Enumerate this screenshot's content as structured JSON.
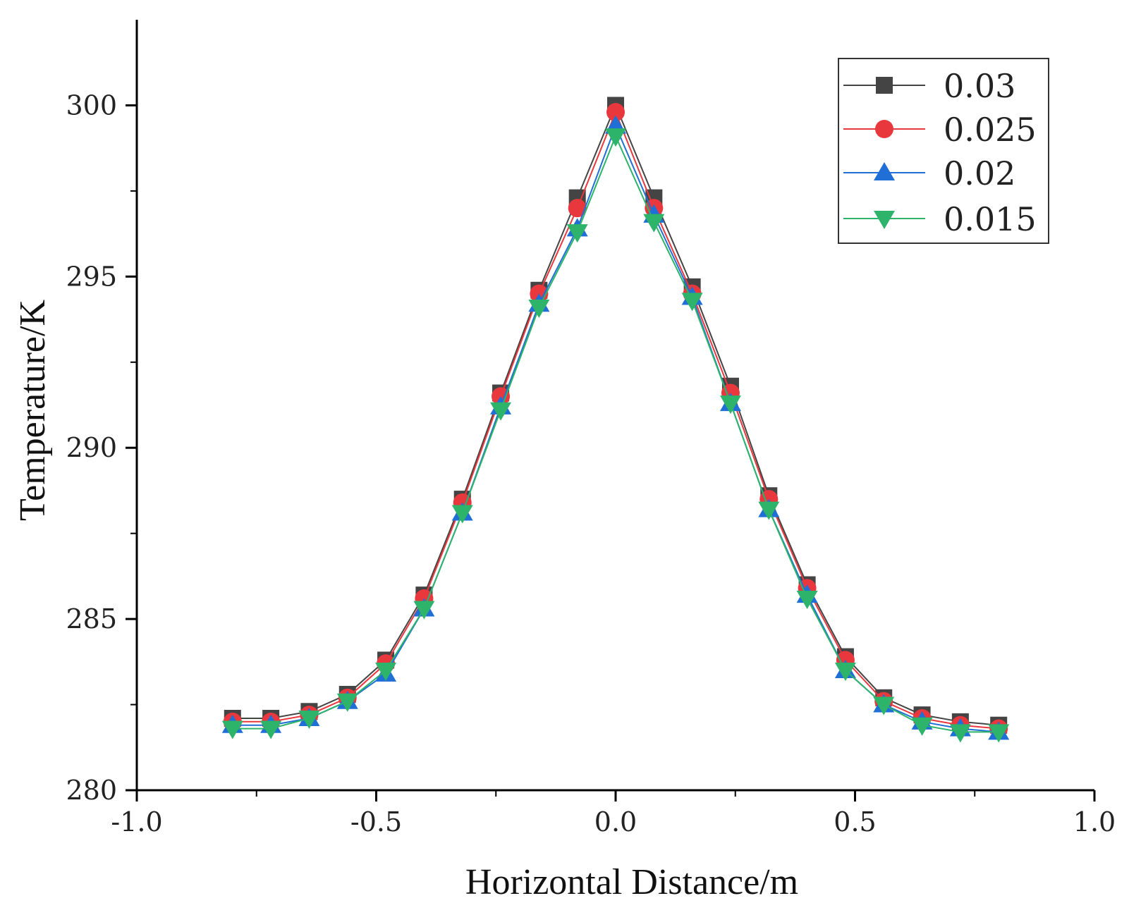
{
  "chart_data": {
    "type": "line",
    "title": "",
    "xlabel": "Horizontal Distance/m",
    "ylabel": "Temperature/K",
    "xlim": [
      -1.0,
      1.0
    ],
    "ylim": [
      280,
      302.5
    ],
    "x_ticks": [
      -1.0,
      -0.5,
      0.0,
      0.5,
      1.0
    ],
    "x_tick_labels": [
      "-1.0",
      "-0.5",
      "0.0",
      "0.5",
      "1.0"
    ],
    "x_minor_ticks": [
      -0.75,
      -0.25,
      0.25,
      0.75
    ],
    "y_ticks": [
      280,
      285,
      290,
      295,
      300
    ],
    "y_tick_labels": [
      "280",
      "285",
      "290",
      "295",
      "300"
    ],
    "y_minor_ticks": [
      282.5,
      287.5,
      292.5,
      297.5
    ],
    "grid": false,
    "legend_position": "top-right",
    "x": [
      -0.8,
      -0.72,
      -0.64,
      -0.56,
      -0.48,
      -0.4,
      -0.32,
      -0.24,
      -0.16,
      -0.08,
      0.0,
      0.08,
      0.16,
      0.24,
      0.32,
      0.4,
      0.48,
      0.56,
      0.64,
      0.72,
      0.8
    ],
    "series": [
      {
        "name": "0.03",
        "color": "#444444",
        "marker": "square",
        "values": [
          282.1,
          282.1,
          282.3,
          282.8,
          283.8,
          285.7,
          288.5,
          291.6,
          294.6,
          297.3,
          300.0,
          297.3,
          294.7,
          291.8,
          288.6,
          286.0,
          283.9,
          282.7,
          282.2,
          282.0,
          281.9
        ]
      },
      {
        "name": "0.025",
        "color": "#e8383d",
        "marker": "circle",
        "values": [
          282.0,
          282.0,
          282.2,
          282.7,
          283.7,
          285.6,
          288.4,
          291.5,
          294.5,
          297.0,
          299.8,
          297.0,
          294.5,
          291.6,
          288.5,
          285.9,
          283.8,
          282.6,
          282.1,
          281.9,
          281.8
        ]
      },
      {
        "name": "0.02",
        "color": "#1f6fd6",
        "marker": "triangle-up",
        "values": [
          281.9,
          281.9,
          282.1,
          282.6,
          283.4,
          285.3,
          288.1,
          291.2,
          294.2,
          296.4,
          299.4,
          296.8,
          294.4,
          291.3,
          288.2,
          285.7,
          283.5,
          282.5,
          282.0,
          281.8,
          281.7
        ]
      },
      {
        "name": "0.015",
        "color": "#2db36a",
        "marker": "triangle-down",
        "values": [
          281.8,
          281.8,
          282.1,
          282.6,
          283.5,
          285.3,
          288.1,
          291.1,
          294.1,
          296.3,
          299.1,
          296.6,
          294.3,
          291.3,
          288.2,
          285.6,
          283.5,
          282.5,
          281.9,
          281.7,
          281.7
        ]
      }
    ]
  }
}
